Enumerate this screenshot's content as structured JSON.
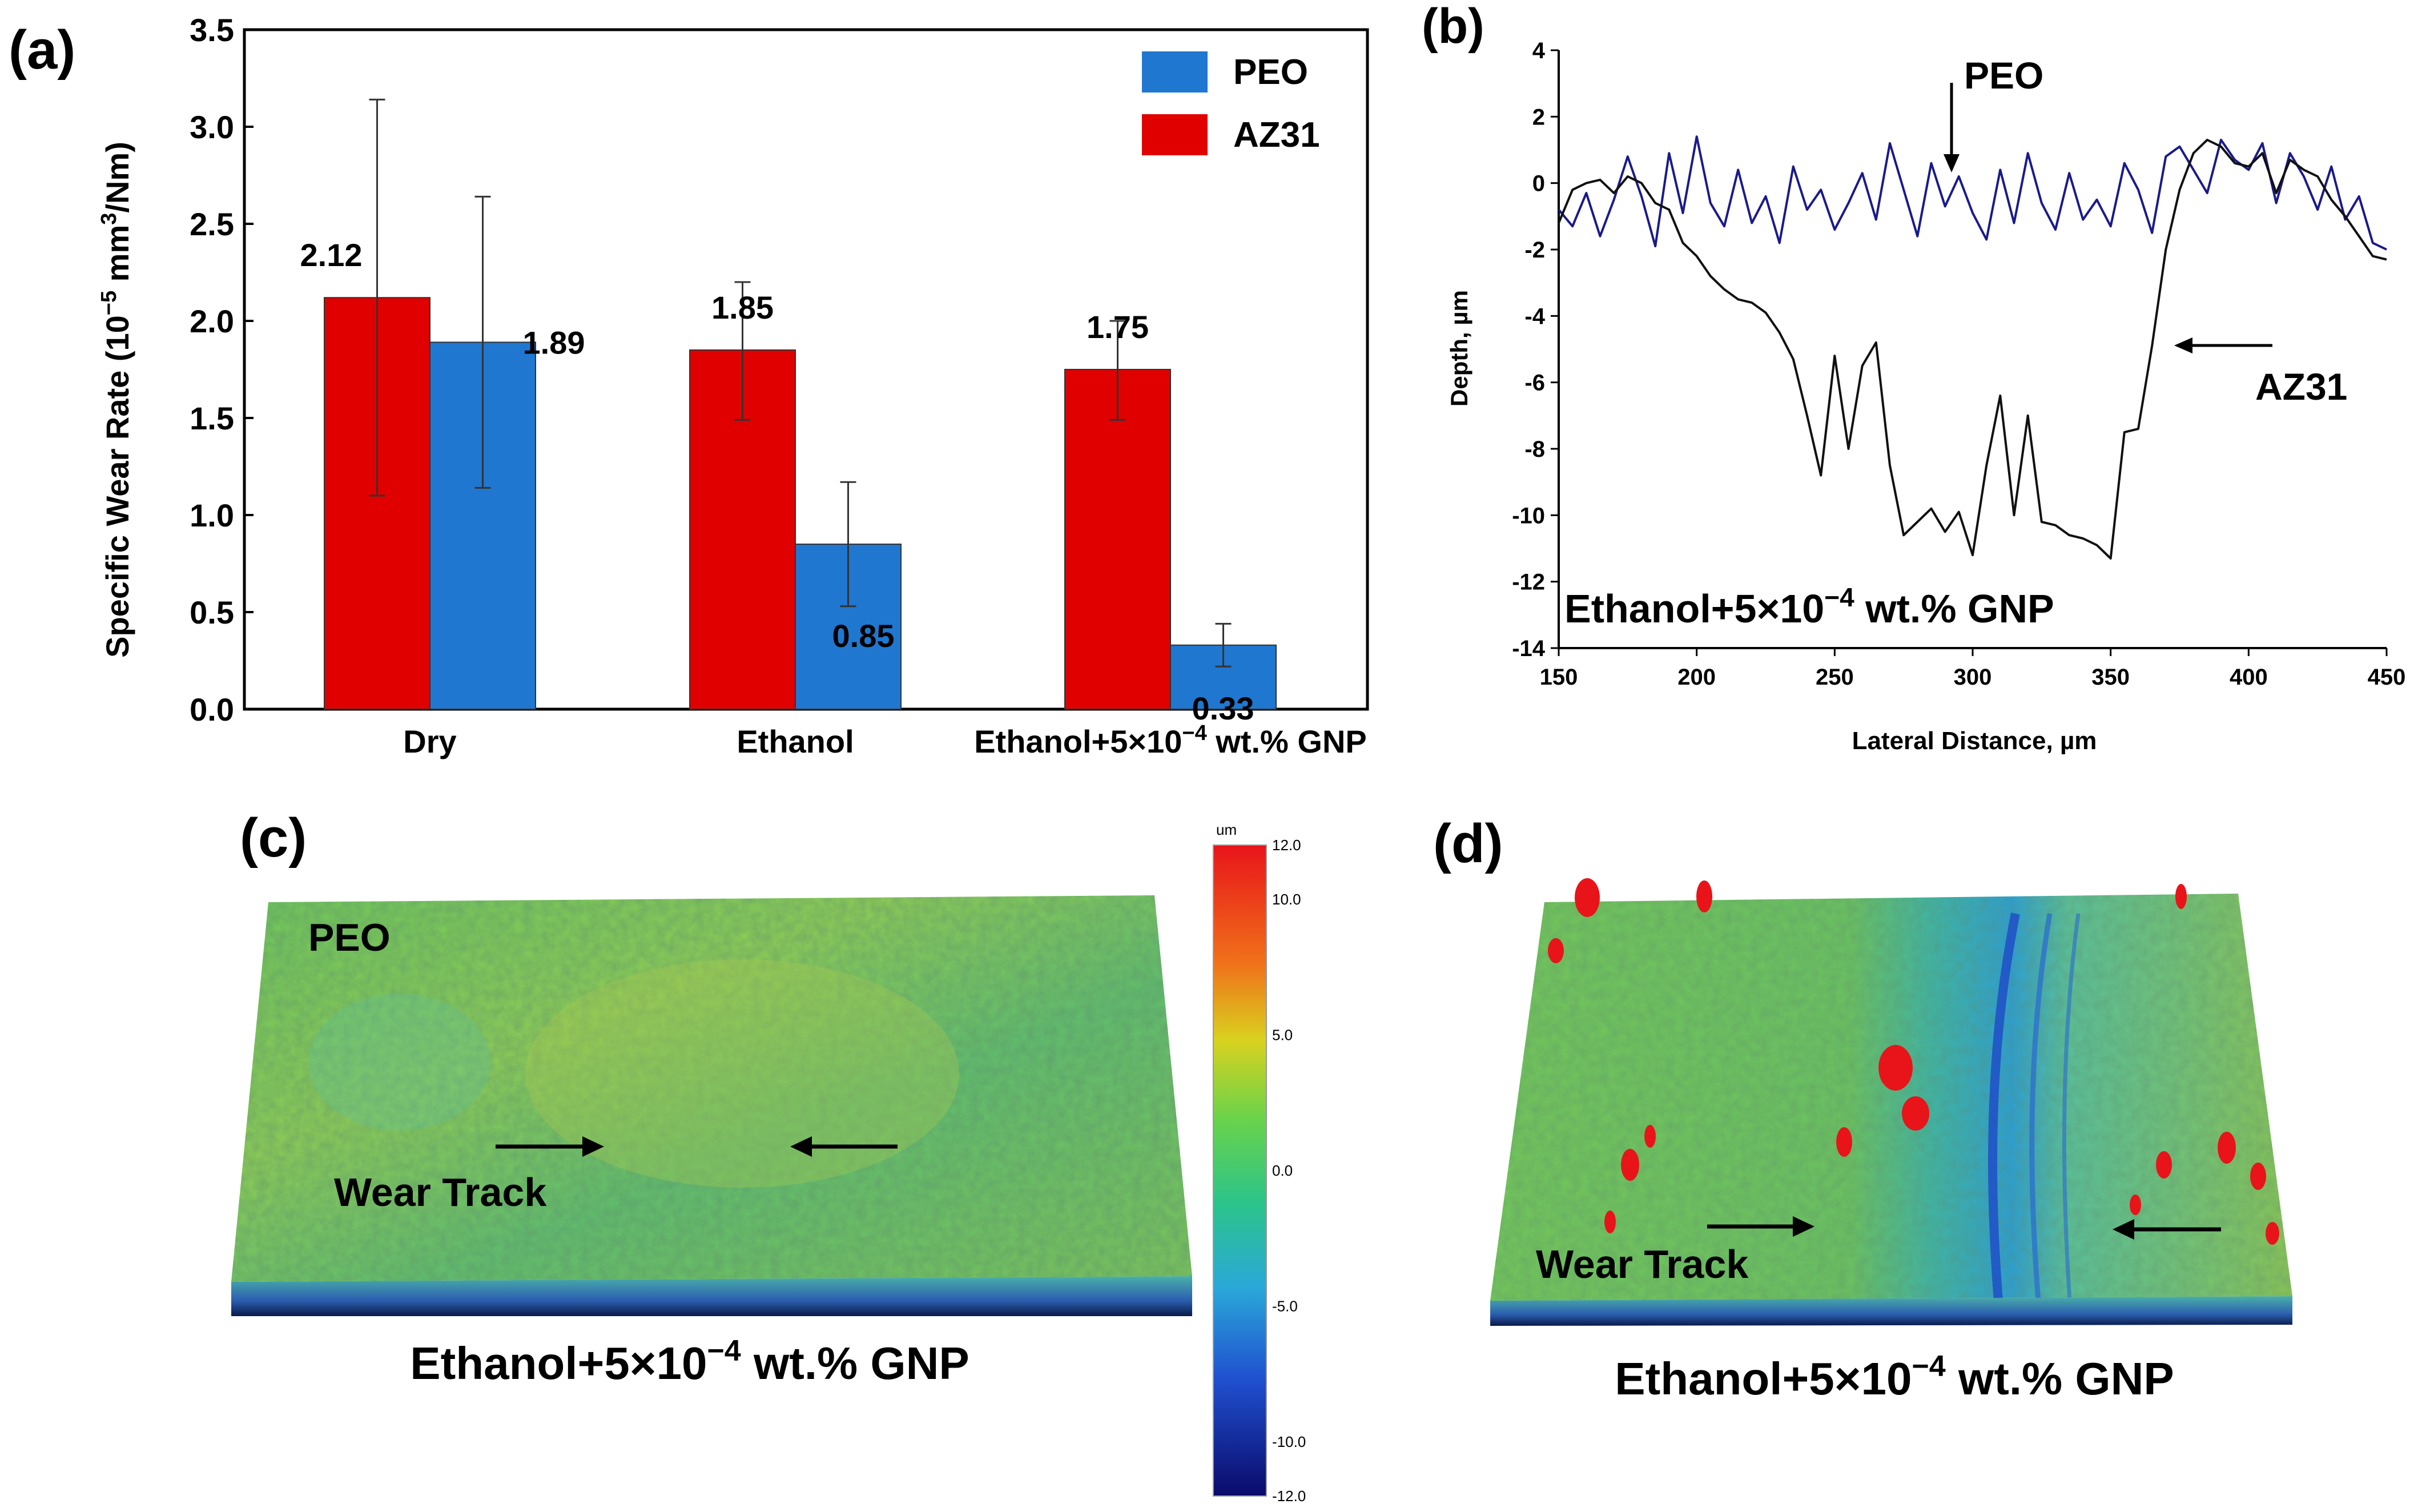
{
  "panels": {
    "a": "(a)",
    "b": "(b)",
    "c": "(c)",
    "d": "(d)"
  },
  "chart_data": [
    {
      "type": "bar",
      "panel": "(a)",
      "ylabel_main": "Specific Wear Rate (10",
      "ylabel_exp1": "−5",
      "ylabel_mid": " mm",
      "ylabel_exp2": "3",
      "ylabel_end": "/Nm)",
      "ylim": [
        0,
        3.5
      ],
      "yticks": [
        0.0,
        0.5,
        1.0,
        1.5,
        2.0,
        2.5,
        3.0,
        3.5
      ],
      "ytick_labels": [
        "0.0",
        "0.5",
        "1.0",
        "1.5",
        "2.0",
        "2.5",
        "3.0",
        "3.5"
      ],
      "categories": [
        "Dry",
        "Ethanol",
        "Ethanol+5×10"
      ],
      "category3_exp": "−4",
      "category3_end": " wt.% GNP",
      "series": [
        {
          "name": "AZ31",
          "color": "#e00000",
          "values": [
            2.12,
            1.85,
            1.75
          ],
          "err_low": [
            1.1,
            1.49,
            1.49
          ],
          "err_high": [
            3.14,
            2.2,
            2.0
          ],
          "labels": [
            "2.12",
            "1.85",
            "1.75"
          ]
        },
        {
          "name": "PEO",
          "color": "#1f77d0",
          "values": [
            1.89,
            0.85,
            0.33
          ],
          "err_low": [
            1.14,
            0.53,
            0.22
          ],
          "err_high": [
            2.64,
            1.17,
            0.44
          ],
          "labels": [
            "1.89",
            "0.85",
            "0.33"
          ]
        }
      ],
      "legend": [
        {
          "name": "PEO",
          "color": "#1f77d0"
        },
        {
          "name": "AZ31",
          "color": "#e00000"
        }
      ],
      "legend_position": "top-right"
    },
    {
      "type": "line",
      "panel": "(b)",
      "xlabel": "Lateral Distance, µm",
      "ylabel": "Depth, µm",
      "xlim": [
        150,
        450
      ],
      "ylim": [
        -14,
        4
      ],
      "xticks": [
        "150",
        "200",
        "250",
        "300",
        "350",
        "400",
        "450"
      ],
      "yticks": [
        "4",
        "2",
        "0",
        "-2",
        "-4",
        "-6",
        "-8",
        "-10",
        "-12",
        "-14"
      ],
      "annotation_main": "Ethanol+5×10",
      "annotation_exp": "−4",
      "annotation_end": " wt.% GNP",
      "series": [
        {
          "name": "PEO",
          "color": "#1a1a8c",
          "x": [
            150,
            155,
            160,
            165,
            170,
            175,
            180,
            185,
            190,
            195,
            200,
            205,
            210,
            215,
            220,
            225,
            230,
            235,
            240,
            245,
            250,
            255,
            260,
            265,
            270,
            275,
            280,
            285,
            290,
            295,
            300,
            305,
            310,
            315,
            320,
            325,
            330,
            335,
            340,
            345,
            350,
            355,
            360,
            365,
            370,
            375,
            380,
            385,
            390,
            395,
            400,
            405,
            410,
            415,
            420,
            425,
            430,
            435,
            440,
            445,
            450
          ],
          "y": [
            -0.8,
            -1.3,
            -0.3,
            -1.6,
            -0.5,
            0.8,
            -0.4,
            -1.9,
            0.9,
            -0.9,
            1.4,
            -0.6,
            -1.3,
            0.4,
            -1.2,
            -0.4,
            -1.8,
            0.5,
            -0.8,
            -0.2,
            -1.4,
            -0.6,
            0.3,
            -1.1,
            1.2,
            -0.2,
            -1.6,
            0.6,
            -0.7,
            0.2,
            -0.9,
            -1.7,
            0.4,
            -1.2,
            0.9,
            -0.6,
            -1.4,
            0.3,
            -1.1,
            -0.5,
            -1.3,
            0.6,
            -0.2,
            -1.5,
            0.8,
            1.1,
            0.4,
            -0.3,
            1.3,
            0.7,
            0.4,
            1.2,
            -0.6,
            0.9,
            0.2,
            -0.8,
            0.5,
            -1.1,
            -0.4,
            -1.8,
            -2.0
          ]
        },
        {
          "name": "AZ31",
          "color": "#111111",
          "x": [
            150,
            155,
            160,
            165,
            170,
            175,
            180,
            185,
            190,
            195,
            200,
            205,
            210,
            215,
            220,
            225,
            230,
            235,
            240,
            245,
            250,
            255,
            260,
            265,
            270,
            275,
            280,
            285,
            290,
            295,
            300,
            305,
            310,
            315,
            320,
            325,
            330,
            335,
            340,
            345,
            350,
            355,
            360,
            365,
            370,
            375,
            380,
            385,
            390,
            395,
            400,
            405,
            410,
            415,
            420,
            425,
            430,
            435,
            440,
            445,
            450
          ],
          "y": [
            -1.2,
            -0.2,
            0.0,
            0.1,
            -0.3,
            0.2,
            0.0,
            -0.6,
            -0.8,
            -1.8,
            -2.2,
            -2.8,
            -3.2,
            -3.5,
            -3.6,
            -3.9,
            -4.5,
            -5.3,
            -7.0,
            -8.8,
            -5.2,
            -8.0,
            -5.5,
            -4.8,
            -8.5,
            -10.6,
            -10.2,
            -9.8,
            -10.5,
            -9.9,
            -11.2,
            -8.5,
            -6.4,
            -10.0,
            -7.0,
            -10.2,
            -10.3,
            -10.6,
            -10.7,
            -10.9,
            -11.3,
            -7.5,
            -7.4,
            -4.9,
            -2.0,
            -0.2,
            0.9,
            1.3,
            1.1,
            0.6,
            0.5,
            0.9,
            -0.3,
            0.7,
            0.4,
            0.2,
            -0.5,
            -1.0,
            -1.6,
            -2.2,
            -2.3
          ]
        }
      ],
      "arrow_labels": [
        "PEO",
        "AZ31"
      ]
    }
  ],
  "panel_c": {
    "sample_label": "PEO",
    "track_label": "Wear Track",
    "caption_main": "Ethanol+5×10",
    "caption_exp": "−4",
    "caption_end": " wt.% GNP"
  },
  "colorbar": {
    "unit": "um",
    "labels": [
      "12.0",
      "10.0",
      "5.0",
      "0.0",
      "-5.0",
      "-10.0",
      "-12.0"
    ]
  },
  "panel_d": {
    "track_label": "Wear Track",
    "caption_main": "Ethanol+5×10",
    "caption_exp": "−4",
    "caption_end": " wt.% GNP"
  }
}
